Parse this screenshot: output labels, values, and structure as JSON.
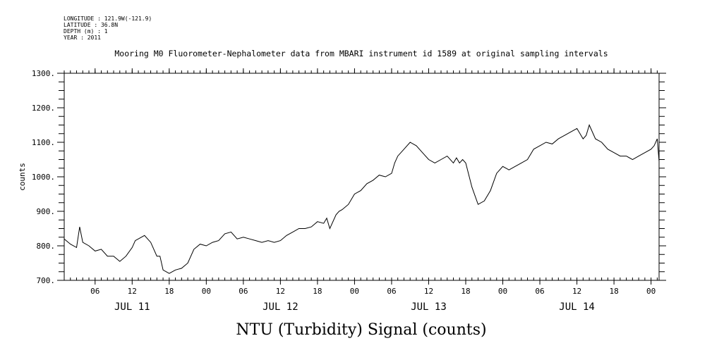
{
  "header": {
    "longitude": "LONGITUDE : 121.9W(-121.9)",
    "latitude": "LATITUDE : 36.8N",
    "depth": "DEPTH (m) : 1",
    "year": "YEAR : 2011"
  },
  "caption": "NTU (Turbidity) Signal (counts)",
  "chart_data": {
    "type": "line",
    "title": "Mooring M0 Fluorometer-Nephalometer data from MBARI instrument id 1589 at original sampling intervals",
    "xlabel": "",
    "ylabel": "counts",
    "ylim": [
      700,
      1300
    ],
    "yticks": [
      700,
      800,
      900,
      1000,
      1100,
      1200,
      1300
    ],
    "ytick_labels": [
      "700.",
      "800.",
      "900.",
      "1000.",
      "1100.",
      "1200.",
      "1300."
    ],
    "xlim_hours": [
      1,
      97.3
    ],
    "x_units": "hours since JUL 11 00:00, 2011",
    "xtick_hours": [
      6,
      12,
      18,
      24,
      30,
      36,
      42,
      48,
      54,
      60,
      66,
      72,
      78,
      84,
      90,
      96
    ],
    "xtick_labels": [
      "06",
      "12",
      "18",
      "00",
      "06",
      "12",
      "18",
      "00",
      "06",
      "12",
      "18",
      "00",
      "06",
      "12",
      "18",
      "00"
    ],
    "day_labels": [
      {
        "label": "JUL 11",
        "hour": 12
      },
      {
        "label": "JUL 12",
        "hour": 36
      },
      {
        "label": "JUL 13",
        "hour": 60
      },
      {
        "label": "JUL 14",
        "hour": 84
      }
    ],
    "grid": false,
    "series": [
      {
        "color": "#000000",
        "x": [
          1,
          2,
          3,
          3.5,
          4,
          5,
          6,
          7,
          8,
          9,
          10,
          11,
          12,
          12.5,
          13,
          14,
          15,
          16,
          16.5,
          17,
          18,
          19,
          20,
          21,
          22,
          23,
          24,
          25,
          26,
          27,
          28,
          29,
          30,
          31,
          32,
          33,
          34,
          35,
          36,
          37,
          38,
          39,
          40,
          41,
          42,
          43,
          43.5,
          44,
          45,
          45.5,
          46,
          47,
          48,
          49,
          50,
          51,
          52,
          53,
          54,
          54.5,
          55,
          56,
          57,
          58,
          59,
          60,
          61,
          62,
          63,
          64,
          64.5,
          65,
          65.5,
          66,
          67,
          68,
          69,
          70,
          71,
          72,
          73,
          74,
          75,
          76,
          77,
          78,
          79,
          80,
          81,
          82,
          83,
          84,
          85,
          85.5,
          86,
          87,
          88,
          89,
          90,
          91,
          92,
          93,
          94,
          95,
          96,
          96.5,
          97,
          97.3
        ],
        "y": [
          820,
          805,
          795,
          855,
          810,
          800,
          785,
          790,
          770,
          770,
          755,
          770,
          795,
          815,
          820,
          830,
          810,
          770,
          770,
          730,
          720,
          730,
          735,
          750,
          790,
          805,
          800,
          810,
          815,
          835,
          840,
          820,
          825,
          820,
          815,
          810,
          815,
          810,
          815,
          830,
          840,
          850,
          850,
          855,
          870,
          865,
          880,
          850,
          890,
          900,
          905,
          920,
          950,
          960,
          980,
          990,
          1005,
          1000,
          1010,
          1040,
          1060,
          1080,
          1100,
          1090,
          1070,
          1050,
          1040,
          1050,
          1060,
          1040,
          1055,
          1040,
          1050,
          1040,
          970,
          920,
          930,
          960,
          1010,
          1030,
          1020,
          1030,
          1040,
          1050,
          1080,
          1090,
          1100,
          1095,
          1110,
          1120,
          1130,
          1140,
          1110,
          1120,
          1150,
          1110,
          1100,
          1080,
          1070,
          1060,
          1060,
          1050,
          1060,
          1070,
          1080,
          1090,
          1110,
          1045
        ]
      }
    ]
  }
}
